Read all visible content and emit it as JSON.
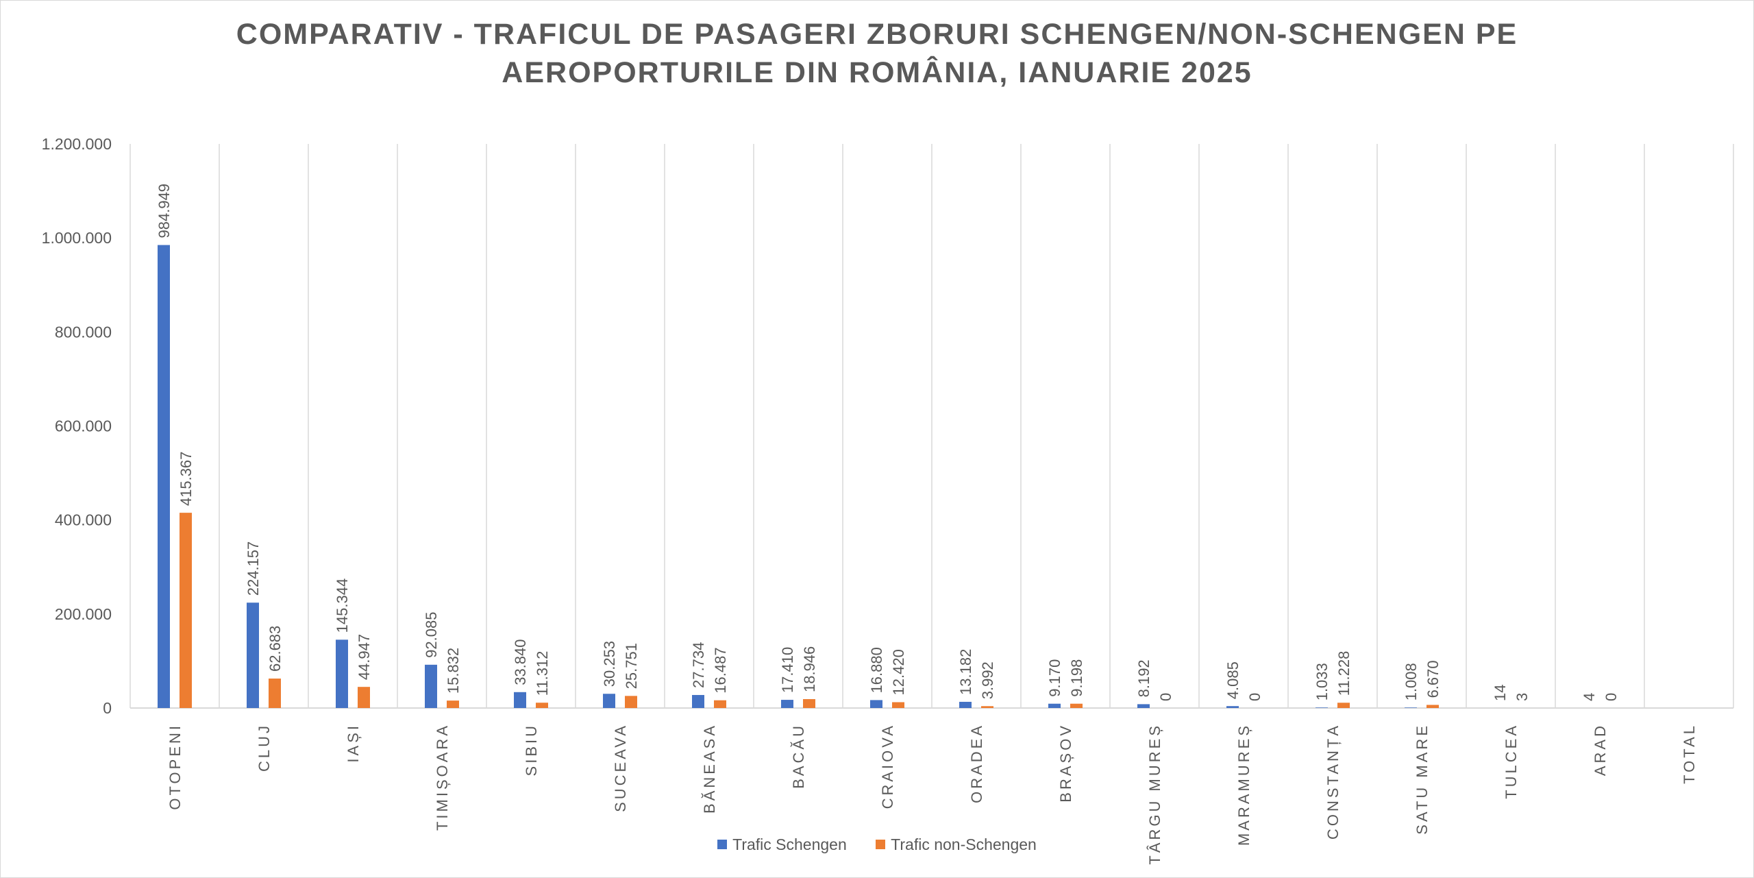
{
  "chart_data": {
    "type": "bar",
    "title": "COMPARATIV - TRAFICUL DE PASAGERI ZBORURI SCHENGEN/NON-SCHENGEN PE AEROPORTURILE DIN ROMÂNIA, IANUARIE 2025",
    "title_lines": [
      "COMPARATIV - TRAFICUL DE PASAGERI ZBORURI SCHENGEN/NON-SCHENGEN PE",
      "AEROPORTURILE DIN ROMÂNIA, IANUARIE 2025"
    ],
    "xlabel": "",
    "ylabel": "",
    "ylim": [
      0,
      1200000
    ],
    "yticks": [
      0,
      200000,
      400000,
      600000,
      800000,
      1000000,
      1200000
    ],
    "ytick_labels": [
      "0",
      "200.000",
      "400.000",
      "600.000",
      "800.000",
      "1.000.000",
      "1.200.000"
    ],
    "grid": "vertical category separators",
    "legend_position": "bottom",
    "categories": [
      "OTOPENI",
      "CLUJ",
      "IAȘI",
      "TIMIȘOARA",
      "SIBIU",
      "SUCEAVA",
      "BĂNEASA",
      "BACĂU",
      "CRAIOVA",
      "ORADEA",
      "BRAȘOV",
      "TÂRGU MUREȘ",
      "MARAMUREȘ",
      "CONSTANȚA",
      "SATU MARE",
      "TULCEA",
      "ARAD",
      "TOTAL"
    ],
    "series": [
      {
        "name": "Trafic Schengen",
        "color": "#4472C4",
        "values": [
          984949,
          224157,
          145344,
          92085,
          33840,
          30253,
          27734,
          17410,
          16880,
          13182,
          9170,
          8192,
          4085,
          1033,
          1008,
          14,
          4,
          null
        ],
        "labels": [
          "984.949",
          "224.157",
          "145.344",
          "92.085",
          "33.840",
          "30.253",
          "27.734",
          "17.410",
          "16.880",
          "13.182",
          "9.170",
          "8.192",
          "4.085",
          "1.033",
          "1.008",
          "14",
          "4",
          null
        ]
      },
      {
        "name": "Trafic non-Schengen",
        "color": "#ED7D31",
        "values": [
          415367,
          62683,
          44947,
          15832,
          11312,
          25751,
          16487,
          18946,
          12420,
          3992,
          9198,
          0,
          0,
          11228,
          6670,
          3,
          0,
          null
        ],
        "labels": [
          "415.367",
          "62.683",
          "44.947",
          "15.832",
          "11.312",
          "25.751",
          "16.487",
          "18.946",
          "12.420",
          "3.992",
          "9.198",
          "0",
          "0",
          "11.228",
          "6.670",
          "3",
          "0",
          null
        ]
      }
    ]
  }
}
